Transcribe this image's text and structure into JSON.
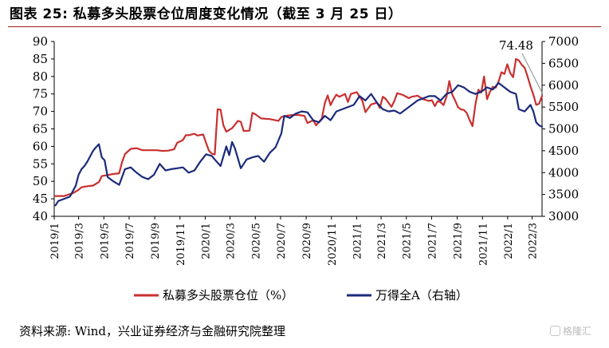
{
  "figure": {
    "title": "图表 25:  私募多头股票仓位周度变化情况（截至 3 月 25 日）",
    "source": "资料来源:   Wind，兴业证券经济与金融研究院整理",
    "watermark": "格隆汇"
  },
  "colors": {
    "series1": "#c8302f",
    "series2": "#1b2a7a",
    "axis": "#000000",
    "annotation_line": "#9a9a9a"
  },
  "chart_data": {
    "type": "line",
    "title": "",
    "xlabel": "",
    "ylabel_left": "",
    "ylabel_right": "",
    "x_tick_labels": [
      "2019/1",
      "2019/3",
      "2019/5",
      "2019/7",
      "2019/9",
      "2019/11",
      "2020/1",
      "2020/3",
      "2020/5",
      "2020/7",
      "2020/9",
      "2020/11",
      "2021/1",
      "2021/3",
      "2021/5",
      "2021/7",
      "2021/9",
      "2021/11",
      "2022/1",
      "2022/3"
    ],
    "x_tick_dates": [
      "2019-01-01",
      "2019-03-01",
      "2019-05-01",
      "2019-07-01",
      "2019-09-01",
      "2019-11-01",
      "2020-01-01",
      "2020-03-01",
      "2020-05-01",
      "2020-07-01",
      "2020-09-01",
      "2020-11-01",
      "2021-01-01",
      "2021-03-01",
      "2021-05-01",
      "2021-07-01",
      "2021-09-01",
      "2021-11-01",
      "2022-01-01",
      "2022-03-01"
    ],
    "x_range": [
      "2019-01-01",
      "2022-03-25"
    ],
    "ylim_left": [
      40,
      90
    ],
    "y_ticks_left": [
      40,
      45,
      50,
      55,
      60,
      65,
      70,
      75,
      80,
      85,
      90
    ],
    "ylim_right": [
      3000,
      7000
    ],
    "y_ticks_right": [
      3000,
      3500,
      4000,
      4500,
      5000,
      5500,
      6000,
      6500,
      7000
    ],
    "legend_position": "bottom",
    "grid": false,
    "annotation": {
      "text": "74.48",
      "date": "2022-03-25",
      "value": 74.48
    },
    "series": [
      {
        "name": "私募多头股票仓位（%）",
        "axis": "left",
        "points": [
          [
            "2019-01-04",
            45.8
          ],
          [
            "2019-01-25",
            45.8
          ],
          [
            "2019-02-15",
            46.6
          ],
          [
            "2019-02-28",
            47.5
          ],
          [
            "2019-03-08",
            48.3
          ],
          [
            "2019-03-22",
            48.6
          ],
          [
            "2019-04-05",
            48.8
          ],
          [
            "2019-04-19",
            49.8
          ],
          [
            "2019-04-26",
            51.5
          ],
          [
            "2019-05-10",
            51.8
          ],
          [
            "2019-05-24",
            52.1
          ],
          [
            "2019-06-07",
            52.3
          ],
          [
            "2019-06-14",
            55.5
          ],
          [
            "2019-06-21",
            57.8
          ],
          [
            "2019-07-05",
            59.3
          ],
          [
            "2019-07-19",
            59.5
          ],
          [
            "2019-08-02",
            58.9
          ],
          [
            "2019-08-16",
            58.9
          ],
          [
            "2019-09-06",
            58.9
          ],
          [
            "2019-09-20",
            58.7
          ],
          [
            "2019-10-04",
            58.8
          ],
          [
            "2019-10-18",
            59.2
          ],
          [
            "2019-10-25",
            61.0
          ],
          [
            "2019-11-08",
            61.8
          ],
          [
            "2019-11-15",
            63.2
          ],
          [
            "2019-11-22",
            63.2
          ],
          [
            "2019-12-06",
            63.6
          ],
          [
            "2019-12-13",
            63.1
          ],
          [
            "2019-12-27",
            63.4
          ],
          [
            "2020-01-03",
            61.0
          ],
          [
            "2020-01-10",
            58.8
          ],
          [
            "2020-01-17",
            57.9
          ],
          [
            "2020-01-24",
            57.7
          ],
          [
            "2020-01-31",
            70.6
          ],
          [
            "2020-02-07",
            70.5
          ],
          [
            "2020-02-14",
            66.0
          ],
          [
            "2020-02-21",
            64.2
          ],
          [
            "2020-03-06",
            65.2
          ],
          [
            "2020-03-20",
            67.3
          ],
          [
            "2020-03-27",
            67.0
          ],
          [
            "2020-04-03",
            64.4
          ],
          [
            "2020-04-17",
            64.5
          ],
          [
            "2020-04-24",
            69.6
          ],
          [
            "2020-05-01",
            69.2
          ],
          [
            "2020-05-15",
            68.0
          ],
          [
            "2020-06-05",
            67.8
          ],
          [
            "2020-06-26",
            67.3
          ],
          [
            "2020-07-03",
            68.4
          ],
          [
            "2020-07-17",
            68.8
          ],
          [
            "2020-07-31",
            69.0
          ],
          [
            "2020-08-14",
            69.0
          ],
          [
            "2020-08-28",
            68.7
          ],
          [
            "2020-09-04",
            66.7
          ],
          [
            "2020-09-18",
            67.5
          ],
          [
            "2020-09-25",
            66.0
          ],
          [
            "2020-10-09",
            68.0
          ],
          [
            "2020-10-16",
            72.4
          ],
          [
            "2020-10-23",
            74.6
          ],
          [
            "2020-10-30",
            71.8
          ],
          [
            "2020-11-06",
            73.5
          ],
          [
            "2020-11-13",
            74.8
          ],
          [
            "2020-11-20",
            74.2
          ],
          [
            "2020-12-04",
            75.0
          ],
          [
            "2020-12-11",
            72.7
          ],
          [
            "2020-12-18",
            75.0
          ],
          [
            "2021-01-01",
            75.5
          ],
          [
            "2021-01-15",
            73.0
          ],
          [
            "2021-01-22",
            69.8
          ],
          [
            "2021-02-05",
            72.0
          ],
          [
            "2021-02-19",
            72.5
          ],
          [
            "2021-02-26",
            71.0
          ],
          [
            "2021-03-05",
            74.2
          ],
          [
            "2021-03-12",
            73.6
          ],
          [
            "2021-03-26",
            71.3
          ],
          [
            "2021-04-02",
            73.0
          ],
          [
            "2021-04-09",
            75.2
          ],
          [
            "2021-04-23",
            74.7
          ],
          [
            "2021-05-07",
            73.8
          ],
          [
            "2021-05-14",
            74.2
          ],
          [
            "2021-05-28",
            74.5
          ],
          [
            "2021-06-11",
            73.5
          ],
          [
            "2021-06-25",
            73.0
          ],
          [
            "2021-07-02",
            73.2
          ],
          [
            "2021-07-09",
            71.5
          ],
          [
            "2021-07-16",
            73.0
          ],
          [
            "2021-07-23",
            72.6
          ],
          [
            "2021-07-30",
            71.8
          ],
          [
            "2021-08-06",
            74.2
          ],
          [
            "2021-08-13",
            78.7
          ],
          [
            "2021-08-20",
            74.8
          ],
          [
            "2021-08-27",
            73.1
          ],
          [
            "2021-09-03",
            71.2
          ],
          [
            "2021-09-10",
            70.6
          ],
          [
            "2021-09-17",
            70.4
          ],
          [
            "2021-09-24",
            69.6
          ],
          [
            "2021-10-01",
            67.5
          ],
          [
            "2021-10-08",
            65.8
          ],
          [
            "2021-10-15",
            72.0
          ],
          [
            "2021-10-22",
            76.2
          ],
          [
            "2021-10-29",
            75.4
          ],
          [
            "2021-11-05",
            80.0
          ],
          [
            "2021-11-12",
            73.5
          ],
          [
            "2021-11-19",
            75.6
          ],
          [
            "2021-11-26",
            77.0
          ],
          [
            "2021-12-03",
            76.8
          ],
          [
            "2021-12-10",
            78.6
          ],
          [
            "2021-12-17",
            81.2
          ],
          [
            "2021-12-24",
            80.7
          ],
          [
            "2021-12-31",
            83.5
          ],
          [
            "2022-01-07",
            81.0
          ],
          [
            "2022-01-14",
            79.8
          ],
          [
            "2022-01-21",
            85.0
          ],
          [
            "2022-01-28",
            84.6
          ],
          [
            "2022-02-04",
            83.3
          ],
          [
            "2022-02-11",
            82.5
          ],
          [
            "2022-02-18",
            80.0
          ],
          [
            "2022-02-25",
            77.2
          ],
          [
            "2022-03-04",
            74.8
          ],
          [
            "2022-03-11",
            71.9
          ],
          [
            "2022-03-18",
            72.2
          ],
          [
            "2022-03-25",
            74.48
          ]
        ]
      },
      {
        "name": "万得全A（右轴）",
        "axis": "right",
        "points": [
          [
            "2019-01-04",
            3250
          ],
          [
            "2019-01-11",
            3350
          ],
          [
            "2019-01-25",
            3400
          ],
          [
            "2019-02-08",
            3450
          ],
          [
            "2019-02-22",
            3700
          ],
          [
            "2019-03-01",
            3950
          ],
          [
            "2019-03-08",
            4080
          ],
          [
            "2019-03-15",
            4150
          ],
          [
            "2019-03-22",
            4250
          ],
          [
            "2019-04-05",
            4500
          ],
          [
            "2019-04-12",
            4580
          ],
          [
            "2019-04-19",
            4650
          ],
          [
            "2019-04-26",
            4350
          ],
          [
            "2019-05-03",
            4280
          ],
          [
            "2019-05-10",
            3900
          ],
          [
            "2019-05-24",
            3800
          ],
          [
            "2019-06-07",
            3720
          ],
          [
            "2019-06-21",
            4080
          ],
          [
            "2019-07-05",
            4120
          ],
          [
            "2019-07-19",
            4000
          ],
          [
            "2019-08-02",
            3900
          ],
          [
            "2019-08-16",
            3850
          ],
          [
            "2019-08-30",
            3950
          ],
          [
            "2019-09-13",
            4200
          ],
          [
            "2019-09-27",
            4050
          ],
          [
            "2019-10-11",
            4080
          ],
          [
            "2019-10-25",
            4100
          ],
          [
            "2019-11-08",
            4120
          ],
          [
            "2019-11-22",
            4000
          ],
          [
            "2019-12-06",
            4050
          ],
          [
            "2019-12-20",
            4250
          ],
          [
            "2020-01-03",
            4420
          ],
          [
            "2020-01-17",
            4380
          ],
          [
            "2020-01-24",
            4300
          ],
          [
            "2020-02-07",
            4150
          ],
          [
            "2020-02-21",
            4600
          ],
          [
            "2020-02-28",
            4400
          ],
          [
            "2020-03-06",
            4700
          ],
          [
            "2020-03-13",
            4550
          ],
          [
            "2020-03-27",
            4100
          ],
          [
            "2020-04-10",
            4300
          ],
          [
            "2020-04-24",
            4350
          ],
          [
            "2020-05-08",
            4380
          ],
          [
            "2020-05-22",
            4250
          ],
          [
            "2020-06-05",
            4450
          ],
          [
            "2020-06-19",
            4580
          ],
          [
            "2020-07-03",
            4900
          ],
          [
            "2020-07-10",
            5300
          ],
          [
            "2020-07-24",
            5250
          ],
          [
            "2020-08-07",
            5350
          ],
          [
            "2020-08-21",
            5400
          ],
          [
            "2020-09-04",
            5380
          ],
          [
            "2020-09-18",
            5200
          ],
          [
            "2020-10-02",
            5150
          ],
          [
            "2020-10-16",
            5300
          ],
          [
            "2020-10-30",
            5200
          ],
          [
            "2020-11-13",
            5400
          ],
          [
            "2020-11-27",
            5450
          ],
          [
            "2020-12-11",
            5500
          ],
          [
            "2020-12-25",
            5550
          ],
          [
            "2021-01-08",
            5750
          ],
          [
            "2021-01-22",
            5650
          ],
          [
            "2021-02-05",
            5800
          ],
          [
            "2021-02-19",
            5600
          ],
          [
            "2021-03-05",
            5450
          ],
          [
            "2021-03-19",
            5400
          ],
          [
            "2021-04-02",
            5420
          ],
          [
            "2021-04-16",
            5350
          ],
          [
            "2021-04-30",
            5450
          ],
          [
            "2021-05-14",
            5550
          ],
          [
            "2021-05-28",
            5650
          ],
          [
            "2021-06-11",
            5700
          ],
          [
            "2021-06-25",
            5750
          ],
          [
            "2021-07-09",
            5750
          ],
          [
            "2021-07-23",
            5650
          ],
          [
            "2021-08-06",
            5800
          ],
          [
            "2021-08-20",
            5850
          ],
          [
            "2021-09-03",
            6000
          ],
          [
            "2021-09-17",
            5950
          ],
          [
            "2021-10-01",
            5850
          ],
          [
            "2021-10-15",
            5800
          ],
          [
            "2021-10-29",
            5850
          ],
          [
            "2021-11-12",
            5950
          ],
          [
            "2021-11-26",
            5900
          ],
          [
            "2021-12-10",
            6050
          ],
          [
            "2021-12-24",
            5950
          ],
          [
            "2022-01-07",
            5850
          ],
          [
            "2022-01-21",
            5800
          ],
          [
            "2022-01-28",
            5450
          ],
          [
            "2022-02-11",
            5400
          ],
          [
            "2022-02-25",
            5550
          ],
          [
            "2022-03-04",
            5400
          ],
          [
            "2022-03-11",
            5150
          ],
          [
            "2022-03-18",
            5080
          ],
          [
            "2022-03-25",
            5050
          ]
        ]
      }
    ]
  }
}
